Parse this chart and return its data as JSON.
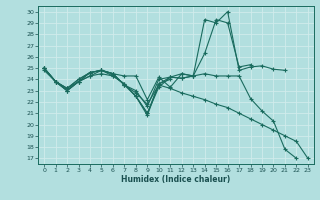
{
  "xlabel": "Humidex (Indice chaleur)",
  "bg_color": "#b2dfdf",
  "grid_color": "#c8e8e8",
  "line_color": "#1a6b5e",
  "xlim": [
    -0.5,
    23.5
  ],
  "ylim": [
    16.5,
    30.5
  ],
  "yticks": [
    17,
    18,
    19,
    20,
    21,
    22,
    23,
    24,
    25,
    26,
    27,
    28,
    29,
    30
  ],
  "xticks": [
    0,
    1,
    2,
    3,
    4,
    5,
    6,
    7,
    8,
    9,
    10,
    11,
    12,
    13,
    14,
    15,
    16,
    17,
    18,
    19,
    20,
    21,
    22,
    23
  ],
  "series": [
    [
      25.0,
      23.8,
      23.0,
      23.8,
      24.6,
      24.8,
      24.5,
      24.3,
      24.3,
      22.2,
      24.2,
      23.3,
      24.5,
      24.3,
      29.3,
      29.0,
      30.0,
      24.8,
      25.1,
      25.2,
      24.9,
      24.8,
      null,
      null
    ],
    [
      25.0,
      23.8,
      23.0,
      23.8,
      24.3,
      24.8,
      24.3,
      23.6,
      22.5,
      20.8,
      23.6,
      24.2,
      24.1,
      24.3,
      26.3,
      29.3,
      29.0,
      25.1,
      25.3,
      null,
      null,
      null,
      null,
      null
    ],
    [
      24.8,
      23.8,
      23.0,
      23.8,
      24.3,
      24.5,
      24.3,
      23.6,
      22.5,
      21.0,
      23.6,
      24.0,
      null,
      null,
      null,
      null,
      null,
      null,
      null,
      null,
      null,
      null,
      null,
      null
    ],
    [
      25.0,
      23.8,
      23.2,
      23.8,
      24.6,
      24.8,
      24.5,
      23.5,
      22.5,
      21.0,
      23.3,
      24.2,
      24.1,
      24.3,
      null,
      null,
      null,
      null,
      null,
      null,
      null,
      null,
      null,
      null
    ],
    [
      25.0,
      23.8,
      23.2,
      24.0,
      24.6,
      24.8,
      24.5,
      23.5,
      23.0,
      21.6,
      24.0,
      24.2,
      24.5,
      24.3,
      24.5,
      24.3,
      24.3,
      24.3,
      22.3,
      21.2,
      20.3,
      17.8,
      17.0,
      null
    ],
    [
      25.0,
      23.8,
      23.2,
      24.0,
      24.6,
      24.8,
      24.5,
      23.5,
      22.8,
      21.8,
      23.5,
      23.2,
      22.8,
      22.5,
      22.2,
      21.8,
      21.5,
      21.0,
      20.5,
      20.0,
      19.5,
      19.0,
      18.5,
      17.0
    ]
  ]
}
